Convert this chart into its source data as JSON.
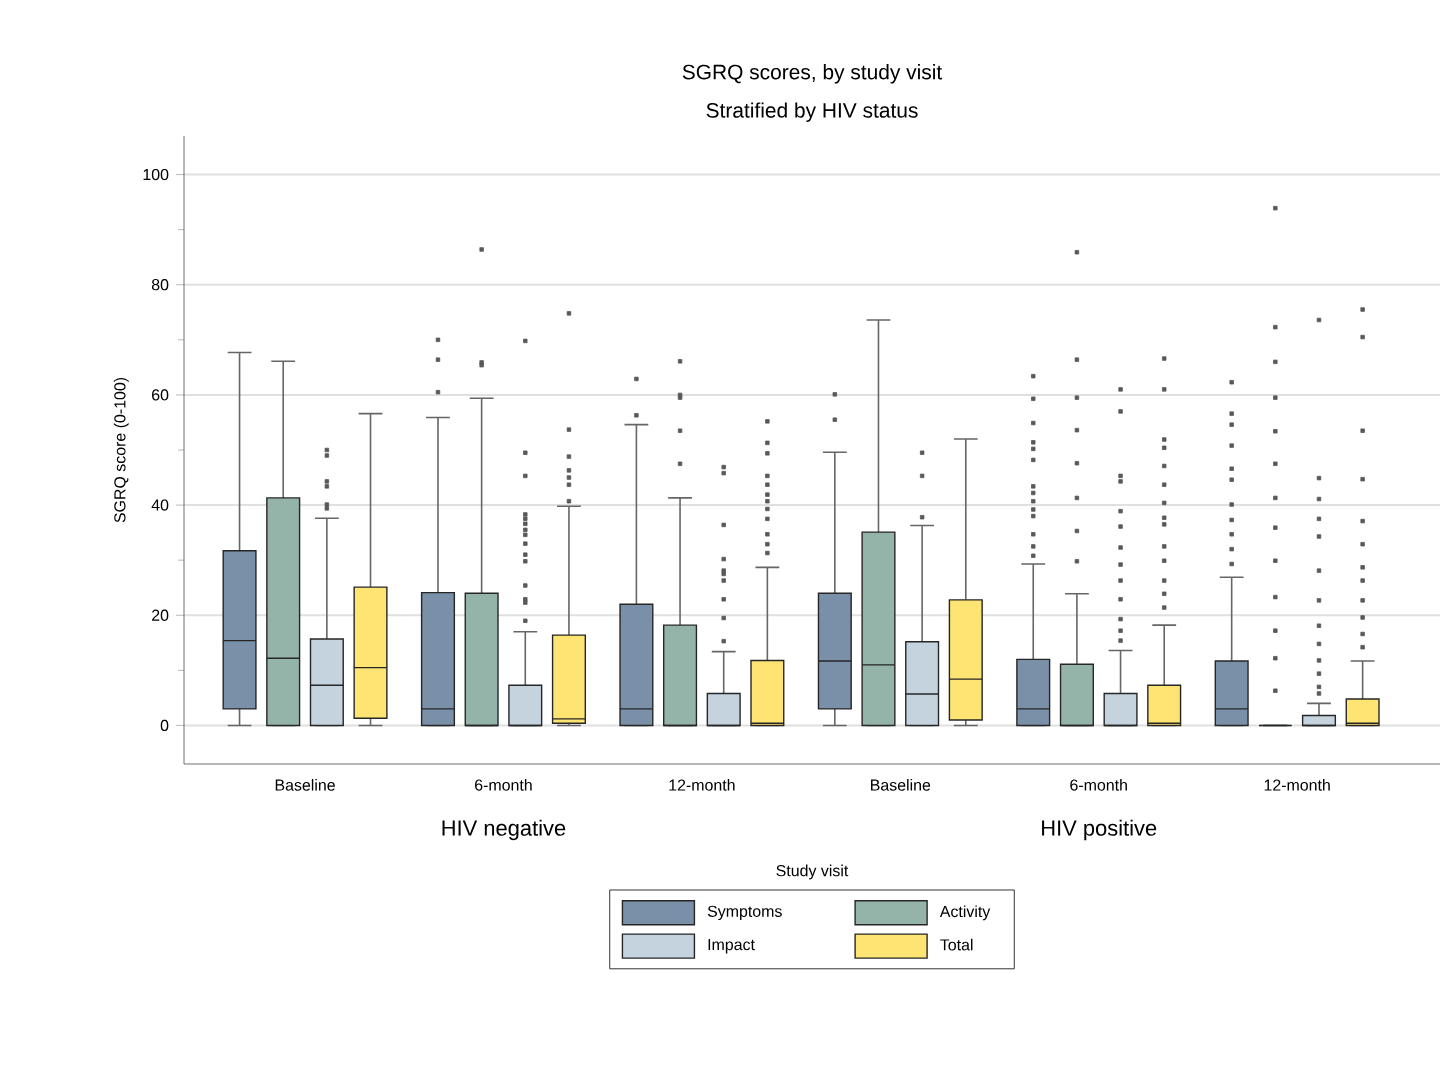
{
  "chart_data": {
    "type": "box",
    "title": "SGRQ scores, by study visit",
    "subtitle": "Stratified by HIV status",
    "xlabel": "Study visit",
    "ylabel": "SGRQ score (0-100)",
    "annotations": [
      "HIV negative",
      "HIV positive"
    ],
    "categories": [
      "Baseline",
      "6-month",
      "12-month",
      "Baseline",
      "6-month",
      "12-month"
    ],
    "ylim": [
      -7,
      107
    ],
    "yticks": [
      0,
      {
        "value": 10,
        "label": null
      },
      20,
      {
        "value": 30,
        "label": null
      },
      40,
      {
        "value": 50,
        "label": null
      },
      60,
      {
        "value": 70,
        "label": null
      },
      80,
      {
        "value": 90,
        "label": null
      },
      100
    ],
    "grid": "y",
    "legend": "bottom",
    "series": [
      {
        "name": "Symptoms",
        "color": "#7a8fa8",
        "boxes": [
          {
            "low": 0,
            "q1": 3,
            "median": 15.4,
            "q3": 31.7,
            "high": 67.7
          },
          {
            "low": 0,
            "q1": 0,
            "median": 3,
            "q3": 24.1,
            "high": 55.9,
            "outliers": [
              70,
              66.4,
              60.5
            ]
          },
          {
            "low": 0,
            "q1": 0,
            "median": 3,
            "q3": 22,
            "high": 54.6,
            "outliers": [
              62.9,
              56.3
            ]
          },
          {
            "low": 0,
            "q1": 3,
            "median": 11.7,
            "q3": 24,
            "high": 49.6,
            "outliers": [
              60.1,
              55.5
            ]
          },
          {
            "low": 0,
            "q1": 0,
            "median": 3,
            "q3": 12,
            "high": 29.3,
            "outliers": [
              63.4,
              59.3,
              54.9,
              51.4,
              50.2,
              48.2,
              43.4,
              42.2,
              40.7,
              39.2,
              38,
              34.7,
              32.5,
              30.8
            ]
          },
          {
            "low": 0,
            "q1": 0,
            "median": 3,
            "q3": 11.7,
            "high": 26.9,
            "outliers": [
              62.3,
              56.6,
              54.6,
              50.8,
              46.6,
              44.6,
              40.1,
              37.3,
              34.7,
              32,
              29.3
            ]
          }
        ]
      },
      {
        "name": "Activity",
        "color": "#94b4aa",
        "boxes": [
          {
            "low": 0,
            "q1": 0,
            "median": 12.2,
            "q3": 41.3,
            "high": 66.1
          },
          {
            "low": 0,
            "q1": 0,
            "median": 0,
            "q3": 24,
            "high": 59.4,
            "outliers": [
              86.4,
              65.9,
              65.4
            ]
          },
          {
            "low": 0,
            "q1": 0,
            "median": 0,
            "q3": 18.2,
            "high": 41.3,
            "outliers": [
              66.1,
              60,
              59.5,
              53.5,
              47.5
            ]
          },
          {
            "low": 0,
            "q1": 0,
            "median": 11,
            "q3": 35.1,
            "high": 73.6
          },
          {
            "low": 0,
            "q1": 0,
            "median": 0,
            "q3": 11.1,
            "high": 23.9,
            "outliers": [
              85.9,
              66.4,
              59.5,
              53.6,
              47.6,
              41.3,
              35.3,
              29.8
            ]
          },
          {
            "low": 0,
            "q1": 0,
            "median": 0,
            "q3": 0,
            "high": 0,
            "outliers": [
              93.9,
              72.3,
              66,
              59.5,
              53.4,
              47.5,
              41.3,
              35.9,
              29.9,
              23.3,
              17.2,
              12.2,
              6.3
            ]
          }
        ]
      },
      {
        "name": "Impact",
        "color": "#c5d3df",
        "boxes": [
          {
            "low": 0,
            "q1": 0,
            "median": 7.3,
            "q3": 15.7,
            "high": 37.6,
            "outliers": [
              50,
              49,
              44.3,
              43.4,
              40.1,
              39.4
            ]
          },
          {
            "low": 0,
            "q1": 0,
            "median": 0,
            "q3": 7.3,
            "high": 17,
            "outliers": [
              69.8,
              49.5,
              45.3,
              38.3,
              37.5,
              36.6,
              35.5,
              34.6,
              33,
              31,
              29.8,
              25.4,
              22.9,
              22.3,
              19
            ]
          },
          {
            "low": 0,
            "q1": 0,
            "median": 0,
            "q3": 5.8,
            "high": 13.4,
            "outliers": [
              46.9,
              45.8,
              36.4,
              30.2,
              28.1,
              27.5,
              26.3,
              22.9,
              19.5,
              15.3
            ]
          },
          {
            "low": 0,
            "q1": 0,
            "median": 5.7,
            "q3": 15.2,
            "high": 36.3,
            "outliers": [
              49.5,
              45.3,
              37.8
            ]
          },
          {
            "low": 0,
            "q1": 0,
            "median": 0,
            "q3": 5.8,
            "high": 13.6,
            "outliers": [
              61,
              57,
              45.3,
              44.3,
              38.9,
              36.1,
              32.3,
              29.2,
              26.3,
              22.9,
              19.3,
              17.2,
              15.4
            ]
          },
          {
            "low": 0,
            "q1": 0,
            "median": 0,
            "q3": 1.8,
            "high": 4,
            "outliers": [
              73.6,
              44.9,
              41.1,
              37.5,
              34.3,
              28.1,
              22.7,
              18.1,
              14.8,
              11.8,
              9.4,
              7,
              5.8
            ]
          }
        ]
      },
      {
        "name": "Total",
        "color": "#fee472",
        "boxes": [
          {
            "low": 0,
            "q1": 1.3,
            "median": 10.5,
            "q3": 25.1,
            "high": 56.6
          },
          {
            "low": 0,
            "q1": 0.4,
            "median": 1.2,
            "q3": 16.4,
            "high": 39.8,
            "outliers": [
              74.8,
              53.7,
              48.8,
              46.3,
              45,
              43.7,
              40.7
            ]
          },
          {
            "low": 0,
            "q1": 0,
            "median": 0.4,
            "q3": 11.8,
            "high": 28.7,
            "outliers": [
              55.2,
              51.3,
              49.4,
              45.3,
              43.7,
              41.9,
              40.7,
              39.3,
              37.5,
              34.7,
              32.9,
              31.3
            ]
          },
          {
            "low": 0,
            "q1": 1,
            "median": 8.4,
            "q3": 22.8,
            "high": 52
          },
          {
            "low": 0,
            "q1": 0,
            "median": 0.4,
            "q3": 7.3,
            "high": 18.2,
            "outliers": [
              66.6,
              61,
              51.9,
              50.4,
              47.1,
              43.7,
              40.4,
              37.7,
              36.5,
              32.5,
              29.9,
              26.3,
              23.9,
              21.4
            ]
          },
          {
            "low": 0,
            "q1": 0,
            "median": 0.4,
            "q3": 4.8,
            "high": 11.7,
            "outliers": [
              75.5,
              70.5,
              53.5,
              44.7,
              37.1,
              32.9,
              28.7,
              26.3,
              22.7,
              19.6,
              16.6,
              14.2
            ]
          }
        ]
      }
    ]
  }
}
